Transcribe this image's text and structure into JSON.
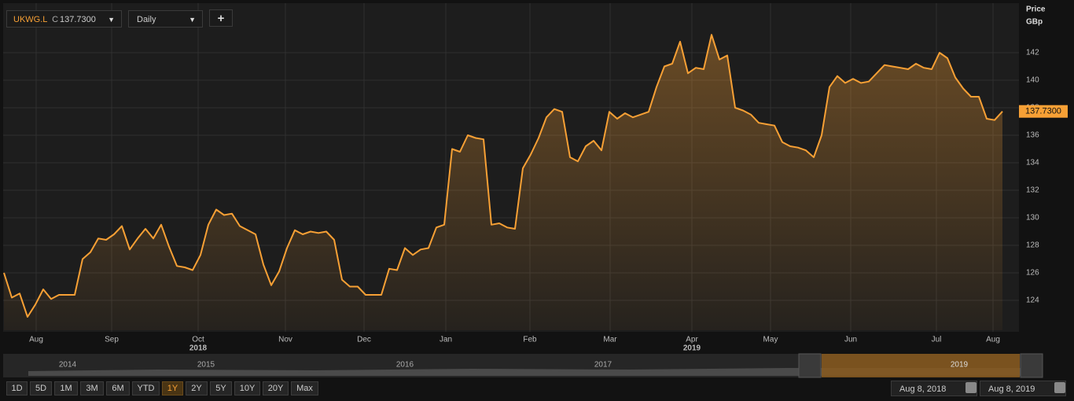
{
  "ui": {
    "symbol": "UKWG.L",
    "close_prefix": "C",
    "interval": "Daily",
    "add": "+",
    "ranges": [
      "1D",
      "5D",
      "1M",
      "3M",
      "6M",
      "YTD",
      "1Y",
      "2Y",
      "5Y",
      "10Y",
      "20Y",
      "Max"
    ],
    "selected_range": "1Y",
    "navigator_years": [
      "2014",
      "2015",
      "2016",
      "2017",
      "2019"
    ],
    "start_date": "Aug 8, 2018",
    "end_date": "Aug 8, 2019"
  },
  "chart_data": {
    "type": "area-line",
    "axis_title": "Price",
    "axis_unit": "GBp",
    "color": "#f7a035",
    "values": [
      126,
      124.2,
      124.5,
      122.8,
      123.7,
      124.8,
      124.1,
      124.4,
      124.4,
      124.4,
      127,
      127.5,
      128.5,
      128.4,
      128.8,
      129.4,
      127.7,
      128.5,
      129.2,
      128.5,
      129.5,
      127.9,
      126.5,
      126.4,
      126.2,
      127.3,
      129.5,
      130.6,
      130.2,
      130.3,
      129.4,
      129.1,
      128.8,
      126.6,
      125.1,
      126.1,
      127.8,
      129.1,
      128.8,
      129,
      128.9,
      129,
      128.4,
      125.5,
      125,
      125,
      124.4,
      124.4,
      124.4,
      126.3,
      126.2,
      127.8,
      127.3,
      127.7,
      127.8,
      129.3,
      129.5,
      135,
      134.8,
      136,
      135.8,
      135.7,
      129.5,
      129.6,
      129.3,
      129.2,
      133.6,
      134.6,
      135.8,
      137.3,
      137.9,
      137.7,
      134.4,
      134.1,
      135.2,
      135.6,
      134.9,
      137.7,
      137.2,
      137.6,
      137.3,
      137.5,
      137.7,
      139.5,
      141,
      141.2,
      142.8,
      140.5,
      140.9,
      140.8,
      143.3,
      141.5,
      141.8,
      138,
      137.8,
      137.5,
      136.9,
      136.8,
      136.7,
      135.5,
      135.2,
      135.1,
      134.9,
      134.4,
      136,
      139.5,
      140.3,
      139.8,
      140.1,
      139.8,
      139.9,
      140.5,
      141.1,
      141,
      140.9,
      140.8,
      141.2,
      140.9,
      140.8,
      142,
      141.6,
      140.2,
      139.4,
      138.8,
      138.8,
      137.2,
      137.1,
      137.73
    ],
    "last_price": {
      "value": 137.73,
      "label": "137.7300"
    },
    "xlim": [
      0,
      127
    ],
    "xticks": [
      {
        "value": 4.1,
        "label": "Aug"
      },
      {
        "value": 13.7,
        "label": "Sep"
      },
      {
        "value": 24.7,
        "label": "Oct"
      },
      {
        "value": 35.8,
        "label": "Nov"
      },
      {
        "value": 45.8,
        "label": "Dec"
      },
      {
        "value": 56.2,
        "label": "Jan"
      },
      {
        "value": 66.9,
        "label": "Feb"
      },
      {
        "value": 77.1,
        "label": "Mar"
      },
      {
        "value": 87.5,
        "label": "Apr"
      },
      {
        "value": 97.5,
        "label": "May"
      },
      {
        "value": 107.7,
        "label": "Jun"
      },
      {
        "value": 118.6,
        "label": "Jul"
      },
      {
        "value": 125.8,
        "label": "Aug"
      }
    ],
    "year_ticks": [
      {
        "value": 24.7,
        "label": "2018"
      },
      {
        "value": 87.5,
        "label": "2019"
      }
    ],
    "ylim": [
      121.83,
      145.54
    ],
    "yticks": [
      124,
      126,
      128,
      130,
      132,
      134,
      136,
      138,
      140,
      142
    ],
    "grid": true
  }
}
